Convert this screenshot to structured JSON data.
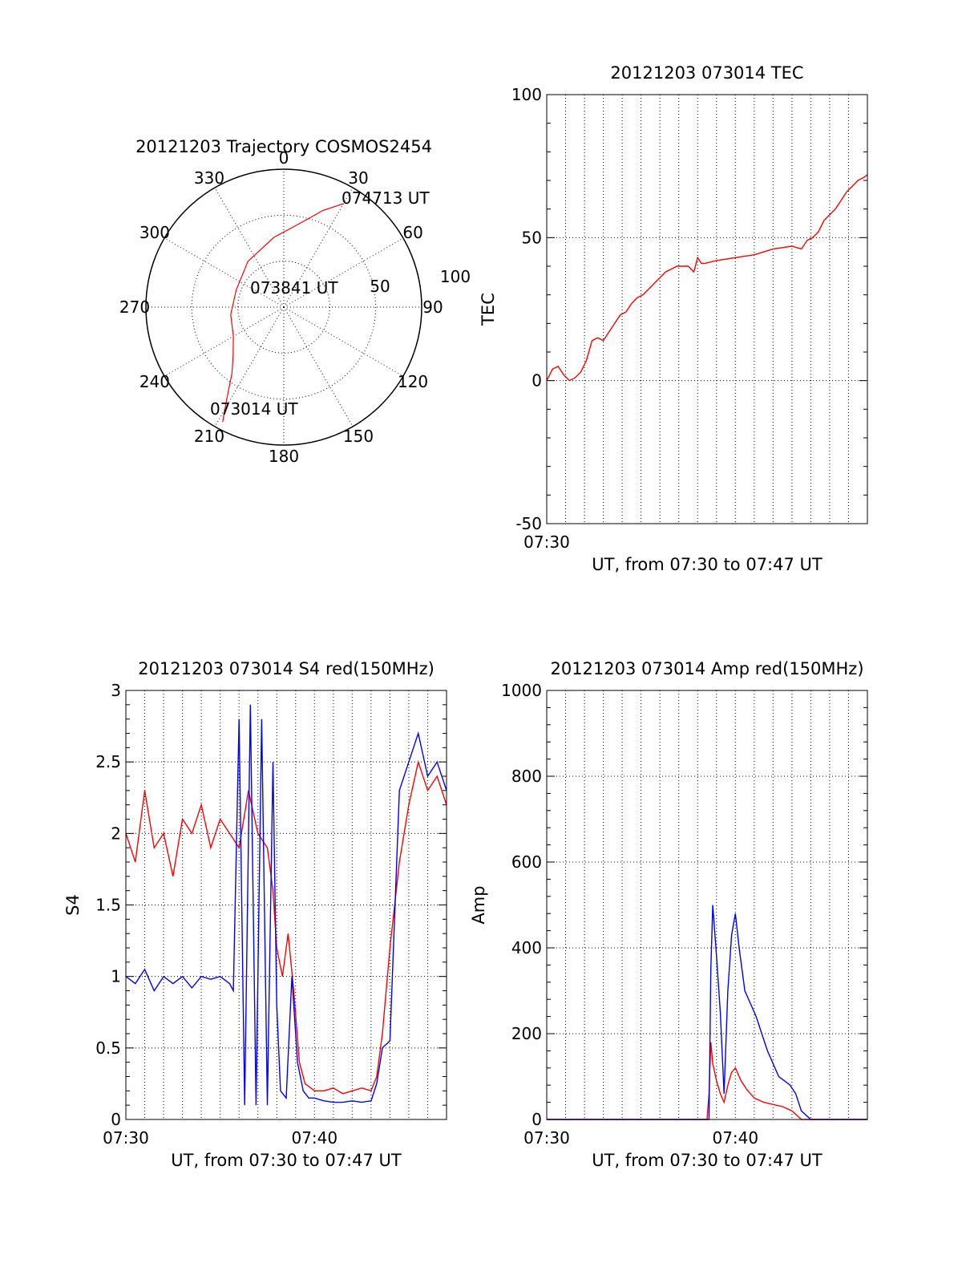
{
  "chart_data": [
    {
      "id": "trajectory",
      "type": "scatter",
      "subtype": "polar",
      "title": "20121203 Trajectory COSMOS2454",
      "azimuth_labels": [
        "0",
        "30",
        "60",
        "90",
        "120",
        "150",
        "180",
        "210",
        "240",
        "270",
        "300",
        "330"
      ],
      "radial_labels": [
        "50",
        "100"
      ],
      "radial_range": [
        0,
        90
      ],
      "grid": true,
      "annotations": [
        "074713 UT",
        "073841 UT",
        "073014 UT"
      ],
      "series": [
        {
          "color": "#ff0000",
          "points": [
            {
              "az": 208,
              "el": 5
            },
            {
              "az": 212,
              "el": 20
            },
            {
              "az": 218,
              "el": 35
            },
            {
              "az": 226,
              "el": 44
            },
            {
              "az": 240,
              "el": 52
            },
            {
              "az": 262,
              "el": 55
            },
            {
              "az": 290,
              "el": 57
            },
            {
              "az": 322,
              "el": 52
            },
            {
              "az": 352,
              "el": 44
            },
            {
              "az": 10,
              "el": 35
            },
            {
              "az": 22,
              "el": 22
            },
            {
              "az": 30,
              "el": 12
            }
          ]
        }
      ]
    },
    {
      "id": "tec",
      "type": "line",
      "title": "20121203 073014 TEC",
      "xlabel": "UT, from 07:30 to 07:47 UT",
      "ylabel": "TEC",
      "xlim": [
        0,
        17.0
      ],
      "ylim": [
        -50,
        100
      ],
      "yticks": [
        -50,
        0,
        50,
        100
      ],
      "xticks": [
        {
          "value": 0,
          "label": "07:30"
        }
      ],
      "grid": true,
      "series": [
        {
          "color": "#ff0000",
          "x": [
            0,
            0.3,
            0.6,
            0.9,
            1.2,
            1.5,
            1.8,
            2.1,
            2.4,
            2.7,
            3.0,
            3.3,
            3.6,
            3.9,
            4.2,
            4.5,
            4.8,
            5.1,
            5.4,
            5.7,
            6.0,
            6.3,
            6.6,
            6.9,
            7.2,
            7.5,
            7.8,
            8.0,
            8.2,
            8.4,
            9.0,
            10.0,
            11.0,
            12.0,
            13.0,
            13.5,
            13.8,
            14.1,
            14.4,
            14.7,
            15.0,
            15.3,
            15.6,
            15.9,
            16.2,
            16.5,
            16.8,
            17.0
          ],
          "values": [
            0,
            4,
            5,
            2,
            0,
            1,
            3,
            7,
            14,
            15,
            14,
            17,
            20,
            23,
            24,
            27,
            29,
            30,
            32,
            34,
            36,
            38,
            39,
            40,
            40,
            40,
            38,
            43,
            41,
            41,
            42,
            43,
            44,
            46,
            47,
            46,
            49,
            50,
            52,
            56,
            58,
            60,
            63,
            66,
            68,
            70,
            71,
            72
          ]
        }
      ]
    },
    {
      "id": "s4",
      "type": "line",
      "title": "20121203 073014 S4 red(150MHz)",
      "xlabel": "UT, from 07:30 to 07:47 UT",
      "ylabel": "S4",
      "xlim": [
        0,
        17.0
      ],
      "ylim": [
        0,
        3
      ],
      "yticks": [
        0,
        0.5,
        1,
        1.5,
        2,
        2.5,
        3
      ],
      "ytick_labels": [
        "0",
        "0.5",
        "1",
        "1.5",
        "2",
        "2.5",
        "3"
      ],
      "xticks": [
        {
          "value": 0,
          "label": "07:30"
        },
        {
          "value": 10,
          "label": "07:40"
        }
      ],
      "grid": true,
      "series": [
        {
          "color": "#ff0000",
          "x": [
            0.0,
            0.5,
            1.0,
            1.5,
            2.0,
            2.5,
            3.0,
            3.5,
            4.0,
            4.5,
            5.0,
            5.5,
            6.0,
            6.5,
            7.0,
            7.5,
            7.8,
            8.0,
            8.3,
            8.6,
            8.9,
            9.2,
            9.5,
            10.0,
            10.5,
            11.0,
            11.5,
            12.0,
            12.5,
            13.0,
            13.3,
            13.6,
            14.0,
            14.5,
            15.0,
            15.5,
            16.0,
            16.5,
            17.0
          ],
          "values": [
            2.0,
            1.8,
            2.3,
            1.9,
            2.0,
            1.7,
            2.1,
            2.0,
            2.2,
            1.9,
            2.1,
            2.0,
            1.9,
            2.3,
            2.0,
            1.9,
            1.6,
            1.2,
            1.0,
            1.3,
            0.9,
            0.4,
            0.25,
            0.2,
            0.2,
            0.22,
            0.18,
            0.2,
            0.22,
            0.2,
            0.3,
            0.6,
            1.2,
            1.8,
            2.2,
            2.5,
            2.3,
            2.4,
            2.2
          ]
        },
        {
          "color": "#0000ff",
          "x": [
            0.0,
            0.5,
            1.0,
            1.5,
            2.0,
            2.5,
            3.0,
            3.5,
            4.0,
            4.5,
            5.0,
            5.5,
            5.7,
            6.0,
            6.3,
            6.6,
            6.9,
            7.2,
            7.5,
            7.8,
            8.0,
            8.2,
            8.5,
            8.8,
            9.1,
            9.4,
            9.7,
            10.0,
            10.5,
            11.0,
            11.5,
            12.0,
            12.5,
            13.0,
            13.3,
            13.6,
            14.0,
            14.5,
            15.0,
            15.5,
            16.0,
            16.5,
            17.0
          ],
          "values": [
            1.0,
            0.95,
            1.05,
            0.9,
            1.0,
            0.95,
            1.0,
            0.92,
            1.0,
            0.98,
            1.0,
            0.95,
            0.9,
            2.8,
            0.1,
            2.9,
            0.1,
            2.8,
            0.1,
            2.5,
            0.8,
            0.2,
            0.15,
            1.0,
            0.4,
            0.2,
            0.15,
            0.15,
            0.13,
            0.12,
            0.12,
            0.13,
            0.12,
            0.13,
            0.25,
            0.5,
            0.55,
            2.3,
            2.5,
            2.7,
            2.4,
            2.5,
            2.3
          ]
        }
      ]
    },
    {
      "id": "amp",
      "type": "line",
      "title": "20121203 073014 Amp red(150MHz)",
      "xlabel": "UT, from 07:30 to 07:47 UT",
      "ylabel": "Amp",
      "xlim": [
        0,
        17.0
      ],
      "ylim": [
        0,
        1000
      ],
      "yticks": [
        0,
        200,
        400,
        600,
        800,
        1000
      ],
      "xticks": [
        {
          "value": 0,
          "label": "07:30"
        },
        {
          "value": 10,
          "label": "07:40"
        }
      ],
      "grid": true,
      "series": [
        {
          "color": "#ff0000",
          "x": [
            0,
            8.5,
            8.6,
            8.7,
            8.8,
            9.0,
            9.2,
            9.4,
            9.6,
            9.8,
            10.0,
            10.3,
            10.6,
            11.0,
            11.5,
            12.0,
            12.5,
            13.0,
            13.5,
            17.0
          ],
          "values": [
            0,
            0,
            60,
            180,
            130,
            90,
            60,
            40,
            80,
            110,
            120,
            90,
            70,
            50,
            40,
            35,
            30,
            20,
            0,
            0
          ]
        },
        {
          "color": "#0000ff",
          "x": [
            0,
            8.6,
            8.7,
            8.8,
            9.0,
            9.2,
            9.4,
            9.6,
            9.8,
            10.0,
            10.2,
            10.5,
            10.8,
            11.1,
            11.4,
            11.7,
            12.0,
            12.3,
            12.6,
            12.9,
            13.2,
            13.5,
            14.0,
            17.0
          ],
          "values": [
            0,
            0,
            350,
            500,
            380,
            250,
            60,
            300,
            430,
            480,
            400,
            300,
            270,
            240,
            200,
            160,
            130,
            100,
            90,
            80,
            60,
            20,
            0,
            0
          ]
        }
      ]
    }
  ]
}
